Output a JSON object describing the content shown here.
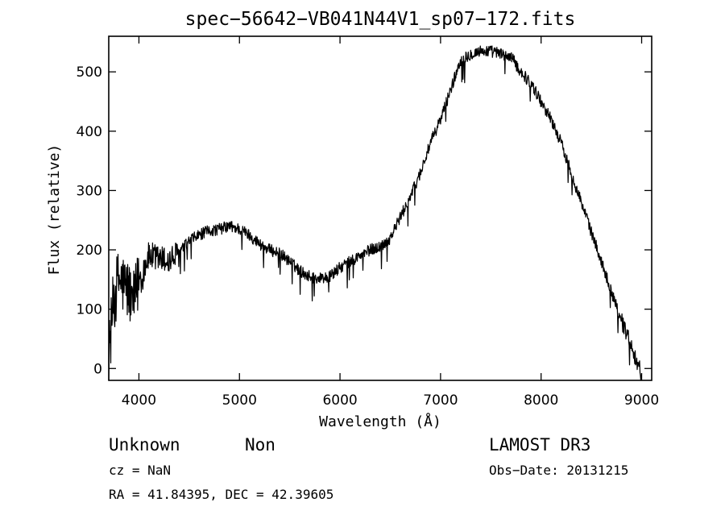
{
  "chart_data": {
    "type": "line",
    "title": "spec−56642−VB041N44V1_sp07−172.fits",
    "xlabel": "Wavelength (Å)",
    "ylabel": "Flux (relative)",
    "xlim": [
      3700,
      9100
    ],
    "ylim": [
      -20,
      560
    ],
    "x_ticks": [
      4000,
      5000,
      6000,
      7000,
      8000,
      9000
    ],
    "y_ticks": [
      0,
      100,
      200,
      300,
      400,
      500
    ],
    "x": [
      3700,
      3750,
      3800,
      3850,
      3900,
      3950,
      4000,
      4100,
      4200,
      4300,
      4400,
      4500,
      4600,
      4700,
      4800,
      4900,
      5000,
      5100,
      5200,
      5300,
      5400,
      5500,
      5600,
      5700,
      5800,
      5900,
      6000,
      6100,
      6200,
      6300,
      6400,
      6500,
      6600,
      6700,
      6800,
      6900,
      7000,
      7100,
      7200,
      7300,
      7400,
      7500,
      7600,
      7700,
      7800,
      7900,
      8000,
      8100,
      8200,
      8300,
      8400,
      8500,
      8600,
      8700,
      8800,
      8900,
      8950,
      9000
    ],
    "y": [
      20,
      120,
      150,
      140,
      130,
      110,
      150,
      190,
      185,
      180,
      195,
      215,
      225,
      232,
      235,
      240,
      235,
      225,
      210,
      200,
      195,
      180,
      165,
      155,
      152,
      155,
      170,
      180,
      190,
      200,
      205,
      220,
      255,
      290,
      330,
      380,
      420,
      470,
      520,
      530,
      535,
      535,
      530,
      525,
      500,
      480,
      450,
      420,
      380,
      330,
      280,
      230,
      180,
      130,
      80,
      40,
      10,
      -5
    ],
    "annotations": {
      "object_class": "Unknown",
      "object_subclass": "Non",
      "survey": "LAMOST DR3",
      "cz": "cz = NaN",
      "obs_date": "Obs−Date: 20131215",
      "coords": "RA =  41.84395, DEC =  42.39605"
    }
  }
}
